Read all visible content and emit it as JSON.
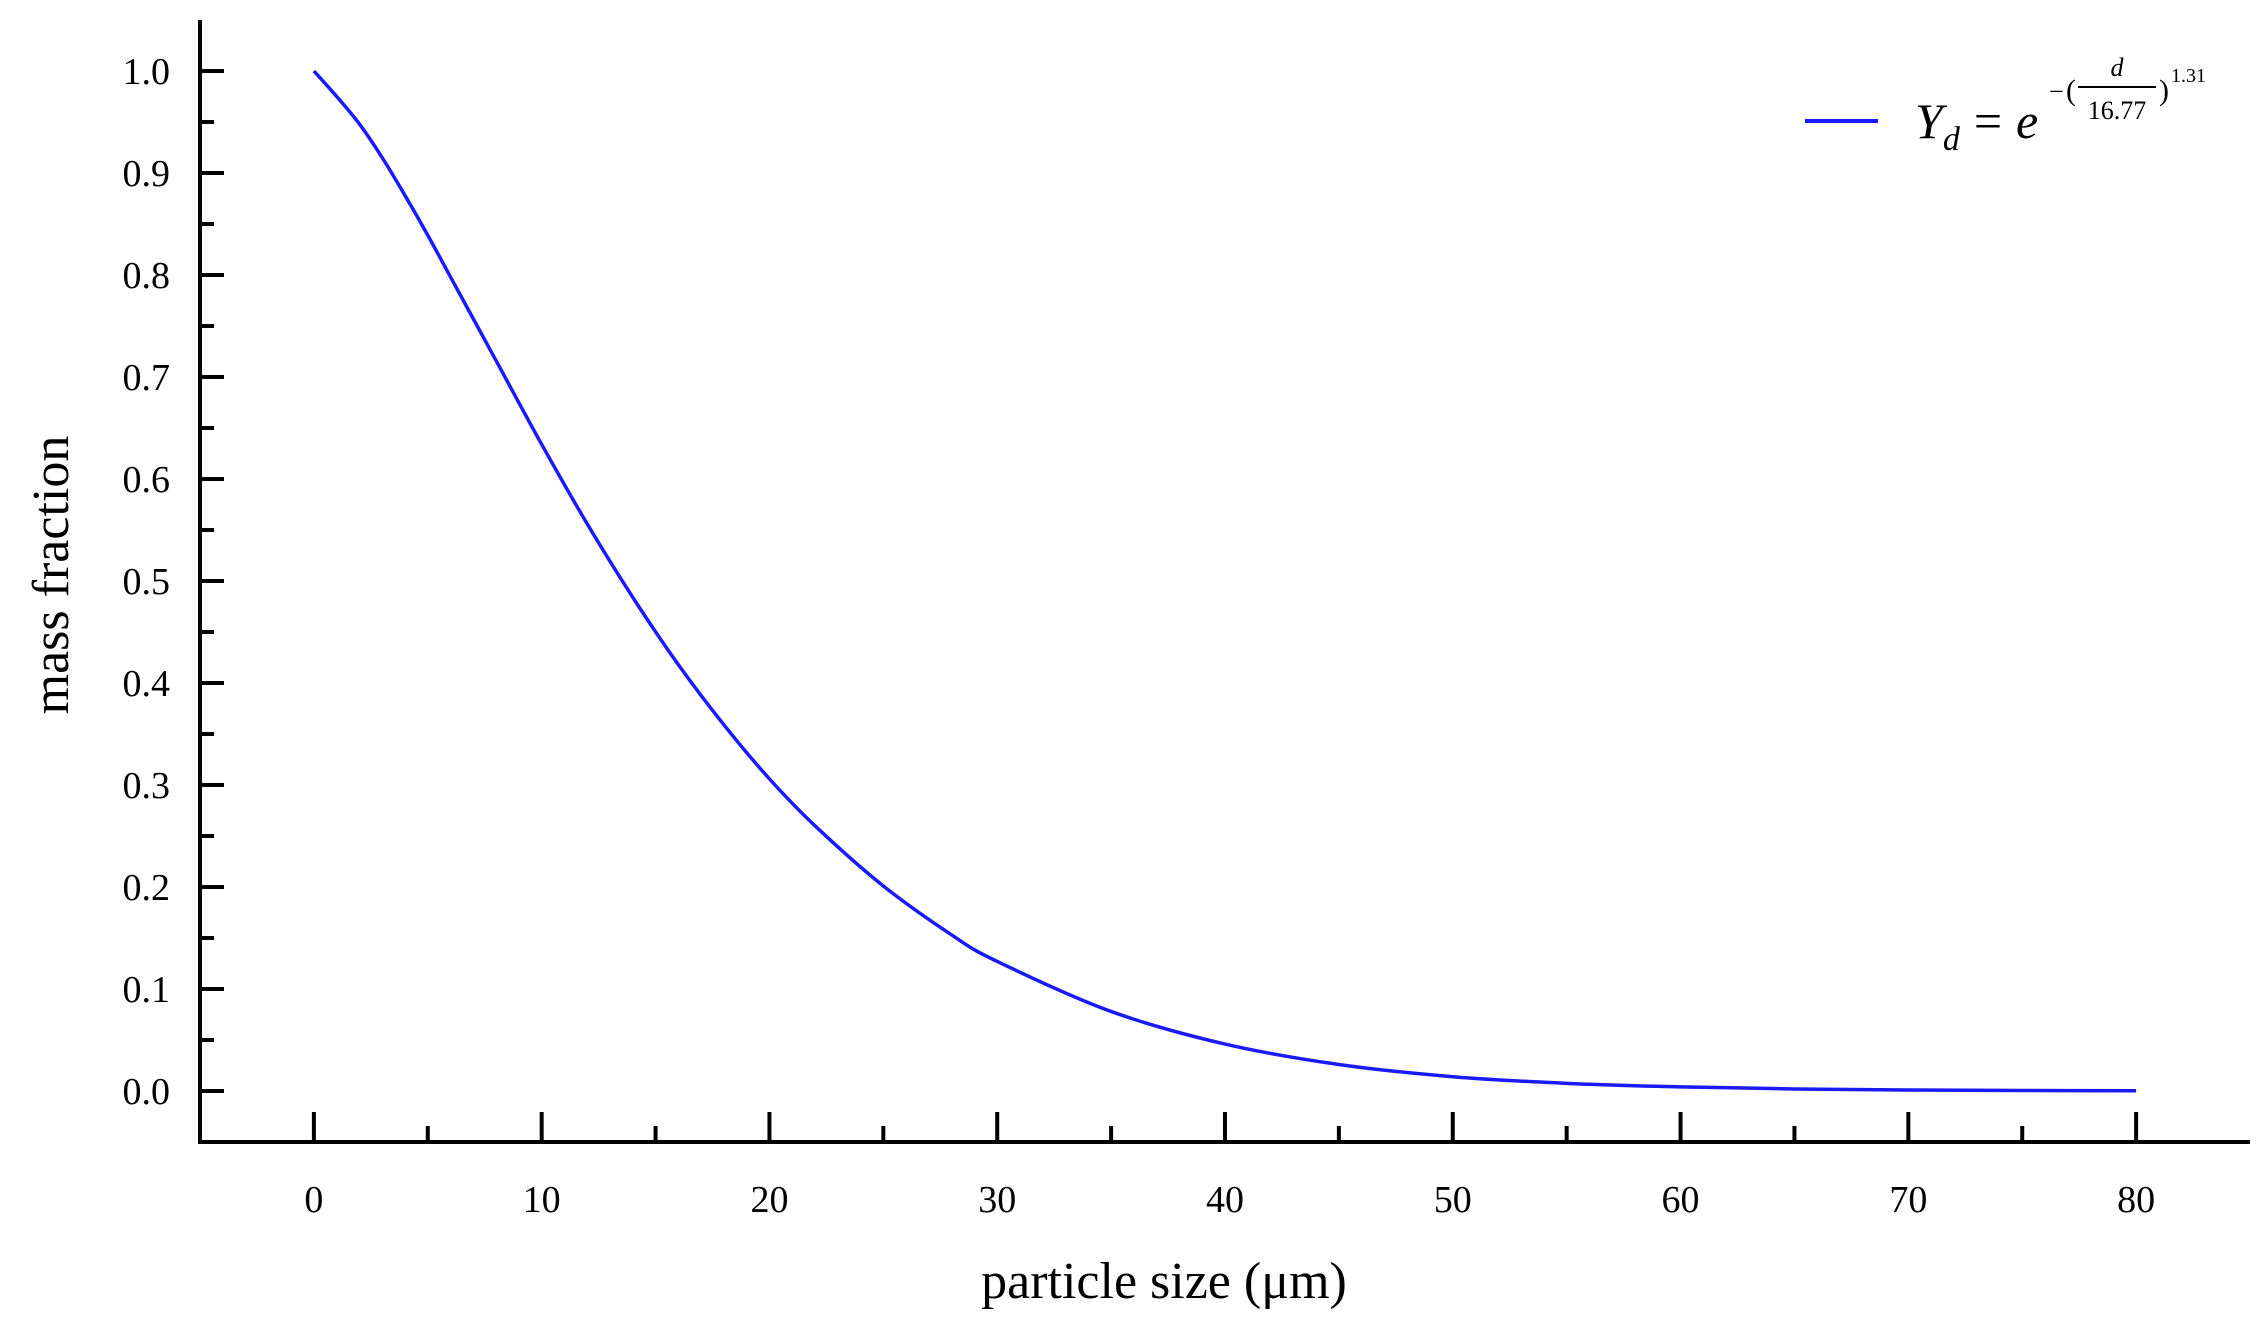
{
  "chart_data": {
    "type": "line",
    "xlabel": "particle size (μm)",
    "ylabel": "mass fraction",
    "xlim": [
      -5,
      85
    ],
    "ylim": [
      -0.05,
      1.05
    ],
    "x_ticks": [
      0,
      10,
      20,
      30,
      40,
      50,
      60,
      70,
      80
    ],
    "x_tick_labels": [
      "0",
      "10",
      "20",
      "30",
      "40",
      "50",
      "60",
      "70",
      "80"
    ],
    "y_ticks": [
      0.0,
      0.1,
      0.2,
      0.3,
      0.4,
      0.5,
      0.6,
      0.7,
      0.8,
      0.9,
      1.0
    ],
    "y_tick_labels": [
      "0.0",
      "0.1",
      "0.2",
      "0.3",
      "0.4",
      "0.5",
      "0.6",
      "0.7",
      "0.8",
      "0.9",
      "1.0"
    ],
    "grid": false,
    "legend_position": "top-right",
    "series": [
      {
        "name": "Y_d = e^-(d/16.77)^1.31",
        "color": "#1a1aff",
        "legend": {
          "base": "Y",
          "subscript": "d",
          "equals": "=",
          "exp_base": "e",
          "minus": "−",
          "open_paren": "(",
          "numerator": "d",
          "denominator": "16.77",
          "close_paren": ")",
          "power": "1.31"
        },
        "x": [
          0,
          1,
          2,
          3,
          4,
          5,
          6,
          7,
          8,
          10,
          12,
          14,
          16,
          18,
          20,
          22,
          25,
          28,
          30,
          35,
          40,
          45,
          50,
          55,
          60,
          65,
          70,
          75,
          80
        ],
        "y": [
          1.0,
          0.975,
          0.948,
          0.915,
          0.878,
          0.839,
          0.798,
          0.757,
          0.716,
          0.634,
          0.556,
          0.484,
          0.418,
          0.359,
          0.306,
          0.26,
          0.201,
          0.153,
          0.127,
          0.078,
          0.046,
          0.026,
          0.014,
          0.0075,
          0.004,
          0.002,
          0.001,
          0.0005,
          0.0002
        ]
      }
    ]
  }
}
